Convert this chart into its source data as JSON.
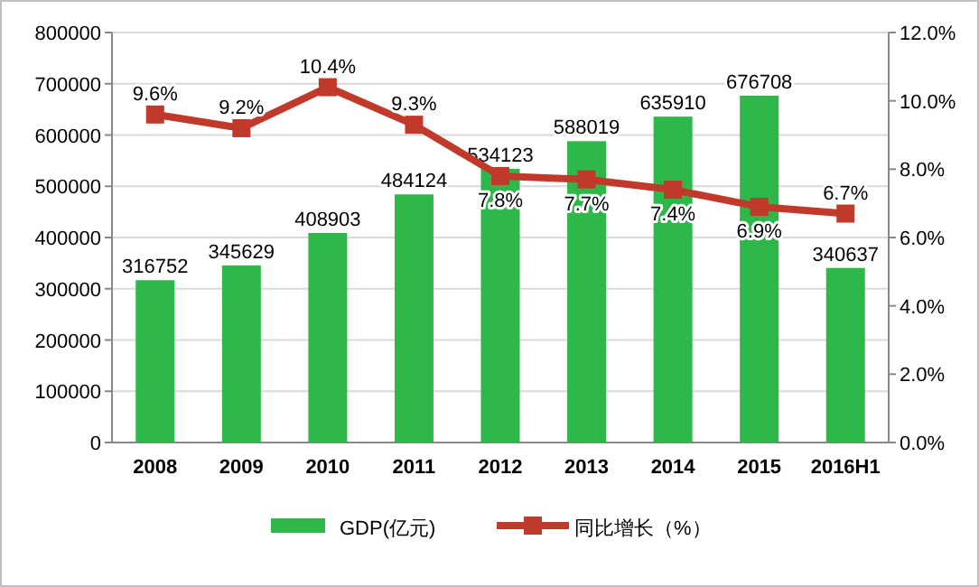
{
  "chart_data": {
    "type": "bar",
    "categories": [
      "2008",
      "2009",
      "2010",
      "2011",
      "2012",
      "2013",
      "2014",
      "2015",
      "2016H1"
    ],
    "series": [
      {
        "name": "GDP(亿元)",
        "color": "#2fb84a",
        "values": [
          316752,
          345629,
          408903,
          484124,
          534123,
          588019,
          635910,
          676708,
          340637
        ],
        "value_labels": [
          "316752",
          "345629",
          "408903",
          "484124",
          "534123",
          "588019",
          "635910",
          "676708",
          "340637"
        ]
      },
      {
        "name": "同比增长（%）",
        "type": "line",
        "axis": "y2",
        "color": "#c0392b",
        "marker": "square",
        "values": [
          9.6,
          9.2,
          10.4,
          9.3,
          7.8,
          7.7,
          7.4,
          6.9,
          6.7
        ],
        "value_labels": [
          "9.6%",
          "9.2%",
          "10.4%",
          "9.3%",
          "7.8%",
          "7.7%",
          "7.4%",
          "6.9%",
          "6.7%"
        ]
      }
    ],
    "ylim": [
      0,
      800000
    ],
    "yticks": [
      0,
      100000,
      200000,
      300000,
      400000,
      500000,
      600000,
      700000,
      800000
    ],
    "y2lim": [
      0,
      12
    ],
    "y2ticks": [
      {
        "value": 0,
        "label": "0.0%"
      },
      {
        "value": 2,
        "label": "2.0%"
      },
      {
        "value": 4,
        "label": "4.0%"
      },
      {
        "value": 6,
        "label": "6.0%"
      },
      {
        "value": 8,
        "label": "8.0%"
      },
      {
        "value": 10,
        "label": "10.0%"
      },
      {
        "value": 12,
        "label": "12.0%"
      }
    ],
    "grid": "y",
    "legend": "bottom"
  }
}
